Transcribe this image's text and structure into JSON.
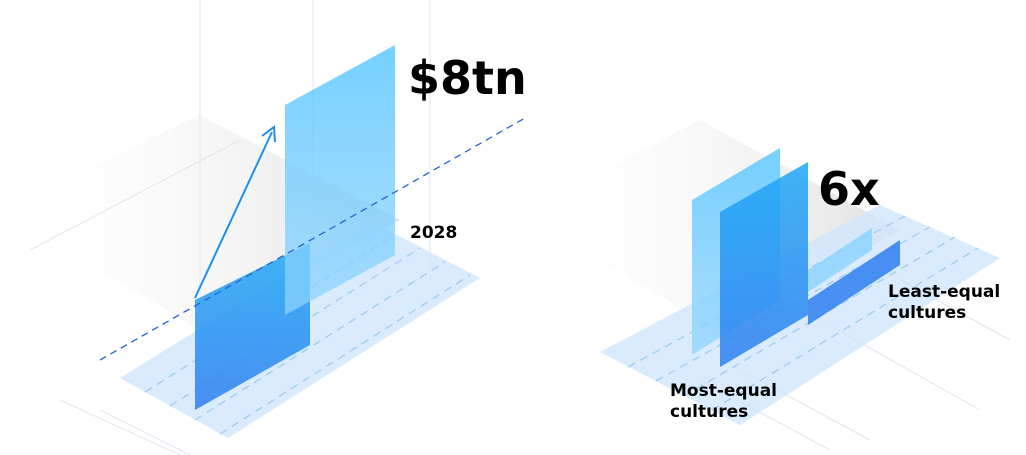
{
  "left_graphic": {
    "headline": "$8tn",
    "year": "2028"
  },
  "right_graphic": {
    "headline": "6x",
    "labels": [
      [
        "Least-equal",
        "cultures"
      ],
      [
        "Most-equal",
        "cultures"
      ]
    ]
  }
}
